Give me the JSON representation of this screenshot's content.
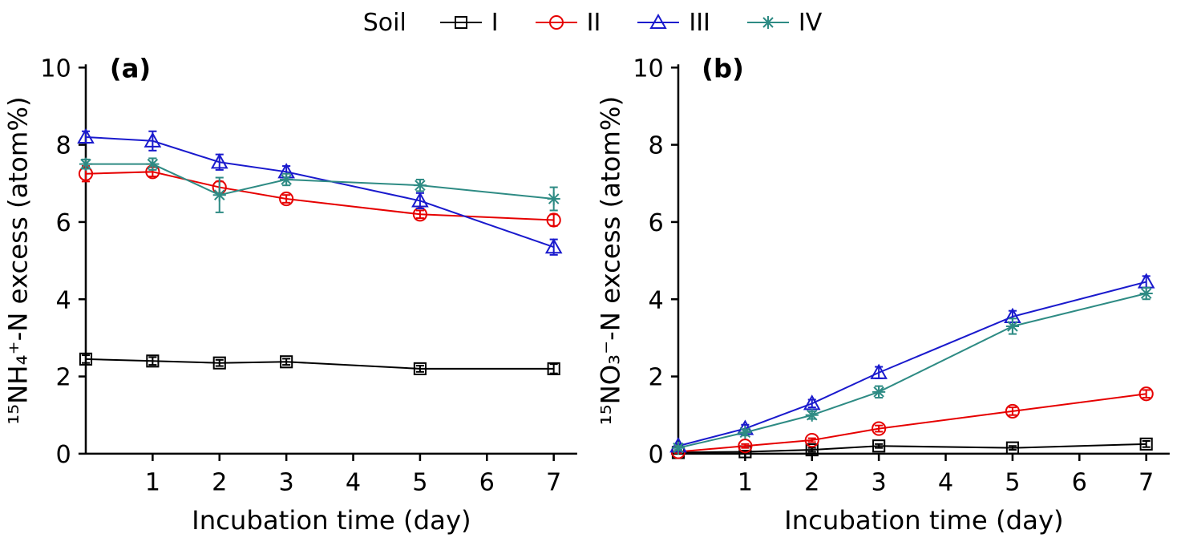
{
  "legend": {
    "title": "Soil",
    "entries": [
      {
        "label": "I",
        "color": "#000000",
        "marker": "square"
      },
      {
        "label": "II",
        "color": "#e60000",
        "marker": "circle"
      },
      {
        "label": "III",
        "color": "#1a1acd",
        "marker": "triangle"
      },
      {
        "label": "IV",
        "color": "#2e8b84",
        "marker": "asterisk"
      }
    ]
  },
  "chart_data": [
    {
      "type": "line",
      "panel_label": "(a)",
      "title": "",
      "xlabel": "Incubation time (day)",
      "ylabel": "¹⁵NH₄⁺-N excess (atom%)",
      "xlim": [
        0,
        7.35
      ],
      "ylim": [
        0,
        10
      ],
      "xticks": [
        1,
        2,
        3,
        4,
        5,
        6,
        7
      ],
      "yticks": [
        0,
        2,
        4,
        6,
        8,
        10
      ],
      "x": [
        0,
        1,
        2,
        3,
        5,
        7
      ],
      "series": [
        {
          "name": "I",
          "color": "#000000",
          "marker": "square",
          "values": [
            2.45,
            2.4,
            2.35,
            2.38,
            2.2,
            2.2
          ],
          "yerr": [
            0.1,
            0.1,
            0.08,
            0.08,
            0.08,
            0.12
          ]
        },
        {
          "name": "II",
          "color": "#e60000",
          "marker": "circle",
          "values": [
            7.25,
            7.3,
            6.9,
            6.6,
            6.2,
            6.05
          ],
          "yerr": [
            0.2,
            0.12,
            0.15,
            0.1,
            0.1,
            0.15
          ]
        },
        {
          "name": "III",
          "color": "#1a1acd",
          "marker": "triangle",
          "values": [
            8.2,
            8.1,
            7.55,
            7.3,
            6.55,
            5.35
          ],
          "yerr": [
            0.15,
            0.25,
            0.2,
            0.15,
            0.2,
            0.2
          ]
        },
        {
          "name": "IV",
          "color": "#2e8b84",
          "marker": "asterisk",
          "values": [
            7.5,
            7.5,
            6.7,
            7.1,
            6.95,
            6.6
          ],
          "yerr": [
            0.12,
            0.15,
            0.45,
            0.15,
            0.15,
            0.3
          ]
        }
      ]
    },
    {
      "type": "line",
      "panel_label": "(b)",
      "title": "",
      "xlabel": "Incubation time (day)",
      "ylabel": "¹⁵NO₃⁻-N excess (atom%)",
      "xlim": [
        0,
        7.35
      ],
      "ylim": [
        0,
        10
      ],
      "xticks": [
        1,
        2,
        3,
        4,
        5,
        6,
        7
      ],
      "yticks": [
        0,
        2,
        4,
        6,
        8,
        10
      ],
      "x": [
        0,
        1,
        2,
        3,
        5,
        7
      ],
      "series": [
        {
          "name": "I",
          "color": "#000000",
          "marker": "square",
          "values": [
            0.03,
            0.05,
            0.1,
            0.2,
            0.15,
            0.25
          ],
          "yerr": [
            0.03,
            0.03,
            0.05,
            0.05,
            0.05,
            0.08
          ]
        },
        {
          "name": "II",
          "color": "#e60000",
          "marker": "circle",
          "values": [
            0.05,
            0.2,
            0.35,
            0.65,
            1.1,
            1.55
          ],
          "yerr": [
            0.03,
            0.05,
            0.05,
            0.08,
            0.1,
            0.1
          ]
        },
        {
          "name": "III",
          "color": "#1a1acd",
          "marker": "triangle",
          "values": [
            0.2,
            0.65,
            1.3,
            2.1,
            3.55,
            4.45
          ],
          "yerr": [
            0.05,
            0.1,
            0.1,
            0.15,
            0.15,
            0.15
          ]
        },
        {
          "name": "IV",
          "color": "#2e8b84",
          "marker": "asterisk",
          "values": [
            0.15,
            0.55,
            1.0,
            1.6,
            3.3,
            4.15
          ],
          "yerr": [
            0.05,
            0.08,
            0.1,
            0.15,
            0.2,
            0.15
          ]
        }
      ]
    }
  ]
}
